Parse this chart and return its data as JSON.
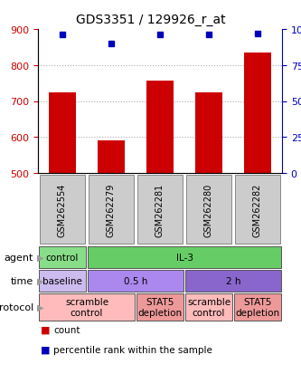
{
  "title": "GDS3351 / 129926_r_at",
  "samples": [
    "GSM262554",
    "GSM262279",
    "GSM262281",
    "GSM262280",
    "GSM262282"
  ],
  "counts": [
    725,
    590,
    757,
    725,
    835
  ],
  "percentiles": [
    96,
    90,
    96,
    96,
    97
  ],
  "ymin": 500,
  "ymax": 900,
  "yticks": [
    500,
    600,
    700,
    800,
    900
  ],
  "pct_ticks": [
    0,
    25,
    50,
    75,
    100
  ],
  "bar_color": "#cc0000",
  "dot_color": "#0000bb",
  "agent_row": {
    "label": "agent",
    "cells": [
      {
        "text": "control",
        "color": "#88dd88",
        "span": 1
      },
      {
        "text": "IL-3",
        "color": "#66cc66",
        "span": 4
      }
    ]
  },
  "time_row": {
    "label": "time",
    "cells": [
      {
        "text": "baseline",
        "color": "#ccbbee",
        "span": 1
      },
      {
        "text": "0.5 h",
        "color": "#aa88ee",
        "span": 2
      },
      {
        "text": "2 h",
        "color": "#8866cc",
        "span": 2
      }
    ]
  },
  "protocol_row": {
    "label": "protocol",
    "cells": [
      {
        "text": "scramble\ncontrol",
        "color": "#ffbbbb",
        "span": 2
      },
      {
        "text": "STAT5\ndepletion",
        "color": "#ee9999",
        "span": 1
      },
      {
        "text": "scramble\ncontrol",
        "color": "#ffbbbb",
        "span": 1
      },
      {
        "text": "STAT5\ndepletion",
        "color": "#ee9999",
        "span": 1
      }
    ]
  },
  "legend_count_color": "#cc0000",
  "legend_pct_color": "#0000bb",
  "grid_color": "#aaaaaa",
  "gsm_bg_color": "#cccccc",
  "gsm_border_color": "#888888"
}
